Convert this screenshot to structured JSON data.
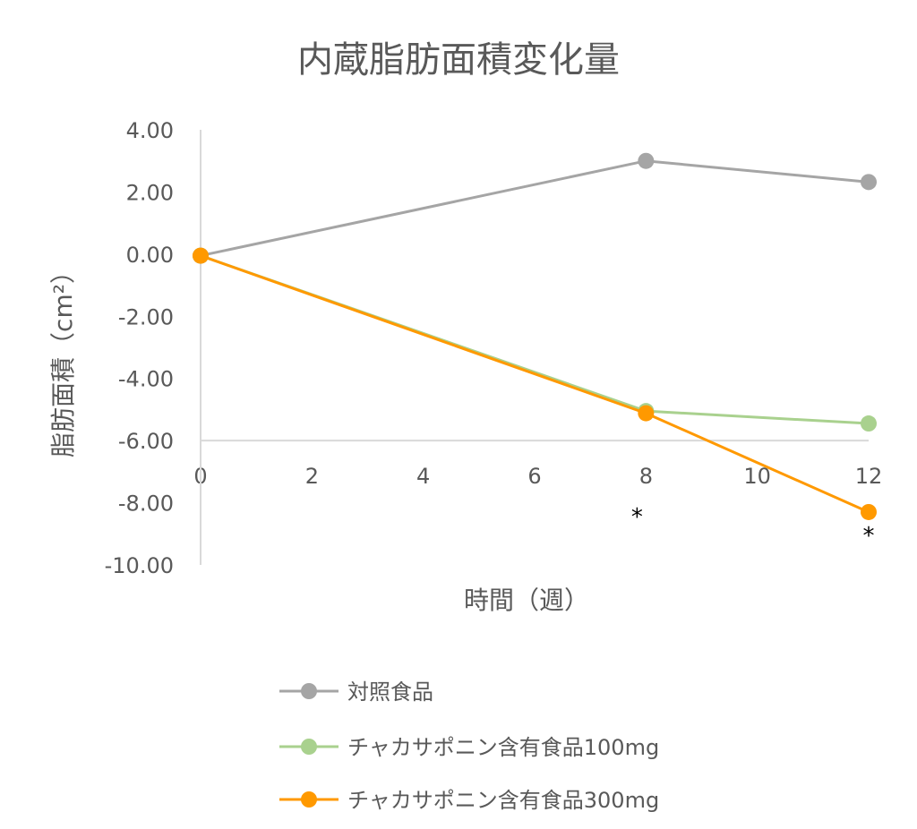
{
  "chart_data": {
    "type": "line",
    "title": "内蔵脂肪面積変化量",
    "xlabel": "時間（週）",
    "ylabel": "脂肪面積（cm²）",
    "xlim": [
      0,
      12
    ],
    "ylim": [
      -10,
      4
    ],
    "x_ticks": [
      "0",
      "2",
      "4",
      "6",
      "8",
      "10",
      "12"
    ],
    "y_ticks": [
      "4.00",
      "2.00",
      "0.00",
      "-2.00",
      "-4.00",
      "-6.00",
      "-8.00",
      "-10.00"
    ],
    "x_axis_crosses_at": -6,
    "grid": false,
    "legend_position": "bottom",
    "series": [
      {
        "name": "対照食品",
        "color": "#a5a5a5",
        "x": [
          0,
          8,
          12
        ],
        "y": [
          -0.05,
          3.0,
          2.32
        ]
      },
      {
        "name": "チャカサポニン含有食品100mg",
        "color": "#a9d18e",
        "x": [
          0,
          8,
          12
        ],
        "y": [
          -0.05,
          -5.05,
          -5.45
        ]
      },
      {
        "name": "チャカサポニン含有食品300mg",
        "color": "#ff9900",
        "x": [
          0,
          8,
          12
        ],
        "y": [
          -0.05,
          -5.12,
          -8.3
        ]
      }
    ],
    "annotations": [
      {
        "text": "*",
        "x": 8,
        "y": -8.3
      },
      {
        "text": "*",
        "x": 12,
        "y": -8.9
      }
    ]
  }
}
